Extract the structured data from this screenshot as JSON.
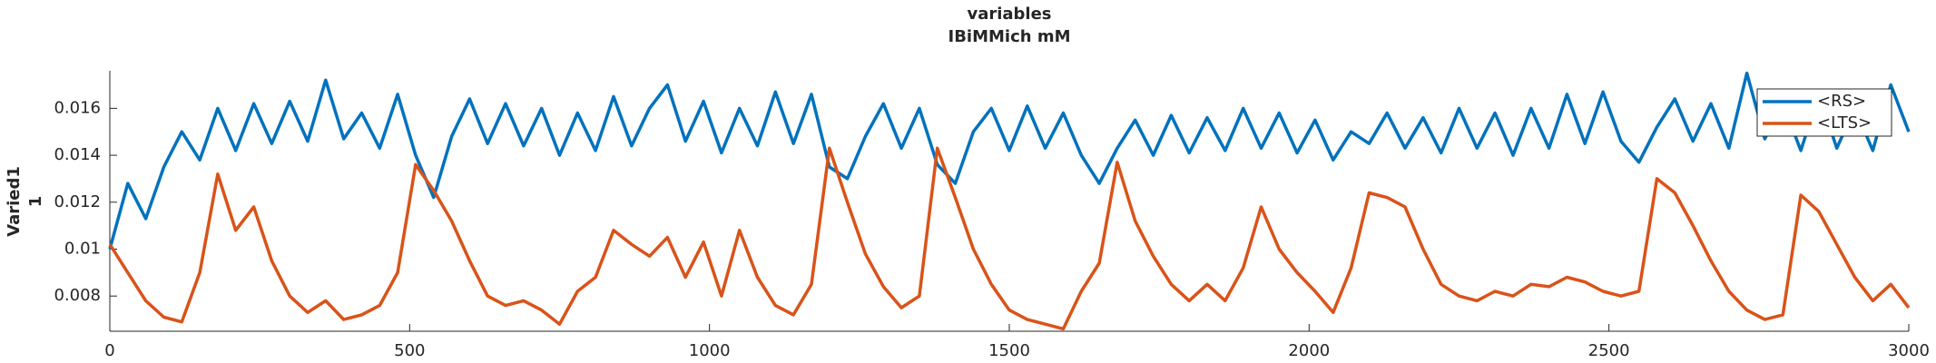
{
  "chart_data": {
    "type": "line",
    "title": "variables",
    "subtitle": "IBiMMich mM",
    "ylabel": [
      "Varied1",
      "1"
    ],
    "x": [
      0,
      30,
      60,
      90,
      120,
      150,
      180,
      210,
      240,
      270,
      300,
      330,
      360,
      390,
      420,
      450,
      480,
      510,
      540,
      570,
      600,
      630,
      660,
      690,
      720,
      750,
      780,
      810,
      840,
      870,
      900,
      930,
      960,
      990,
      1020,
      1050,
      1080,
      1110,
      1140,
      1170,
      1200,
      1230,
      1260,
      1290,
      1320,
      1350,
      1380,
      1410,
      1440,
      1470,
      1500,
      1530,
      1560,
      1590,
      1620,
      1650,
      1680,
      1710,
      1740,
      1770,
      1800,
      1830,
      1860,
      1890,
      1920,
      1950,
      1980,
      2010,
      2040,
      2070,
      2100,
      2130,
      2160,
      2190,
      2220,
      2250,
      2280,
      2310,
      2340,
      2370,
      2400,
      2430,
      2460,
      2490,
      2520,
      2550,
      2580,
      2610,
      2640,
      2670,
      2700,
      2730,
      2760,
      2790,
      2820,
      2850,
      2880,
      2910,
      2940,
      2970,
      3000
    ],
    "series": [
      {
        "name": "<RS>",
        "color": "#0072bd",
        "values": [
          0.01,
          0.0128,
          0.0113,
          0.0135,
          0.015,
          0.0138,
          0.016,
          0.0142,
          0.0162,
          0.0145,
          0.0163,
          0.0146,
          0.0172,
          0.0147,
          0.0158,
          0.0143,
          0.0166,
          0.014,
          0.0122,
          0.0148,
          0.0164,
          0.0145,
          0.0162,
          0.0144,
          0.016,
          0.014,
          0.0158,
          0.0142,
          0.0165,
          0.0144,
          0.016,
          0.017,
          0.0146,
          0.0163,
          0.0141,
          0.016,
          0.0144,
          0.0167,
          0.0145,
          0.0166,
          0.0135,
          0.013,
          0.0148,
          0.0162,
          0.0143,
          0.016,
          0.0136,
          0.0128,
          0.015,
          0.016,
          0.0142,
          0.0161,
          0.0143,
          0.0158,
          0.014,
          0.0128,
          0.0143,
          0.0155,
          0.014,
          0.0157,
          0.0141,
          0.0156,
          0.0142,
          0.016,
          0.0143,
          0.0158,
          0.0141,
          0.0155,
          0.0138,
          0.015,
          0.0145,
          0.0158,
          0.0143,
          0.0156,
          0.0141,
          0.016,
          0.0143,
          0.0158,
          0.014,
          0.016,
          0.0143,
          0.0166,
          0.0145,
          0.0167,
          0.0146,
          0.0137,
          0.0152,
          0.0164,
          0.0146,
          0.0162,
          0.0143,
          0.0175,
          0.0147,
          0.0162,
          0.0142,
          0.0166,
          0.0143,
          0.016,
          0.0142,
          0.017,
          0.015
        ]
      },
      {
        "name": "<LTS>",
        "color": "#d95319",
        "values": [
          0.0102,
          0.009,
          0.0078,
          0.0071,
          0.0069,
          0.009,
          0.0132,
          0.0108,
          0.0118,
          0.0095,
          0.008,
          0.0073,
          0.0078,
          0.007,
          0.0072,
          0.0076,
          0.009,
          0.0136,
          0.0125,
          0.0112,
          0.0095,
          0.008,
          0.0076,
          0.0078,
          0.0074,
          0.0068,
          0.0082,
          0.0088,
          0.0108,
          0.0102,
          0.0097,
          0.0105,
          0.0088,
          0.0103,
          0.008,
          0.0108,
          0.0088,
          0.0076,
          0.0072,
          0.0085,
          0.0143,
          0.012,
          0.0098,
          0.0084,
          0.0075,
          0.008,
          0.0143,
          0.0122,
          0.01,
          0.0085,
          0.0074,
          0.007,
          0.0068,
          0.0066,
          0.0082,
          0.0094,
          0.0137,
          0.0112,
          0.0097,
          0.0085,
          0.0078,
          0.0085,
          0.0078,
          0.0092,
          0.0118,
          0.01,
          0.009,
          0.0082,
          0.0073,
          0.0092,
          0.0124,
          0.0122,
          0.0118,
          0.01,
          0.0085,
          0.008,
          0.0078,
          0.0082,
          0.008,
          0.0085,
          0.0084,
          0.0088,
          0.0086,
          0.0082,
          0.008,
          0.0082,
          0.013,
          0.0124,
          0.011,
          0.0095,
          0.0082,
          0.0074,
          0.007,
          0.0072,
          0.0123,
          0.0116,
          0.0102,
          0.0088,
          0.0078,
          0.0085,
          0.0075
        ]
      }
    ],
    "xlim": [
      0,
      3000
    ],
    "xticks": [
      0,
      500,
      1000,
      1500,
      2000,
      2500,
      3000
    ],
    "ylim": [
      0.0065,
      0.0176
    ],
    "yticks": [
      0.008,
      0.01,
      0.012,
      0.014,
      0.016
    ],
    "legend": "upper right"
  }
}
